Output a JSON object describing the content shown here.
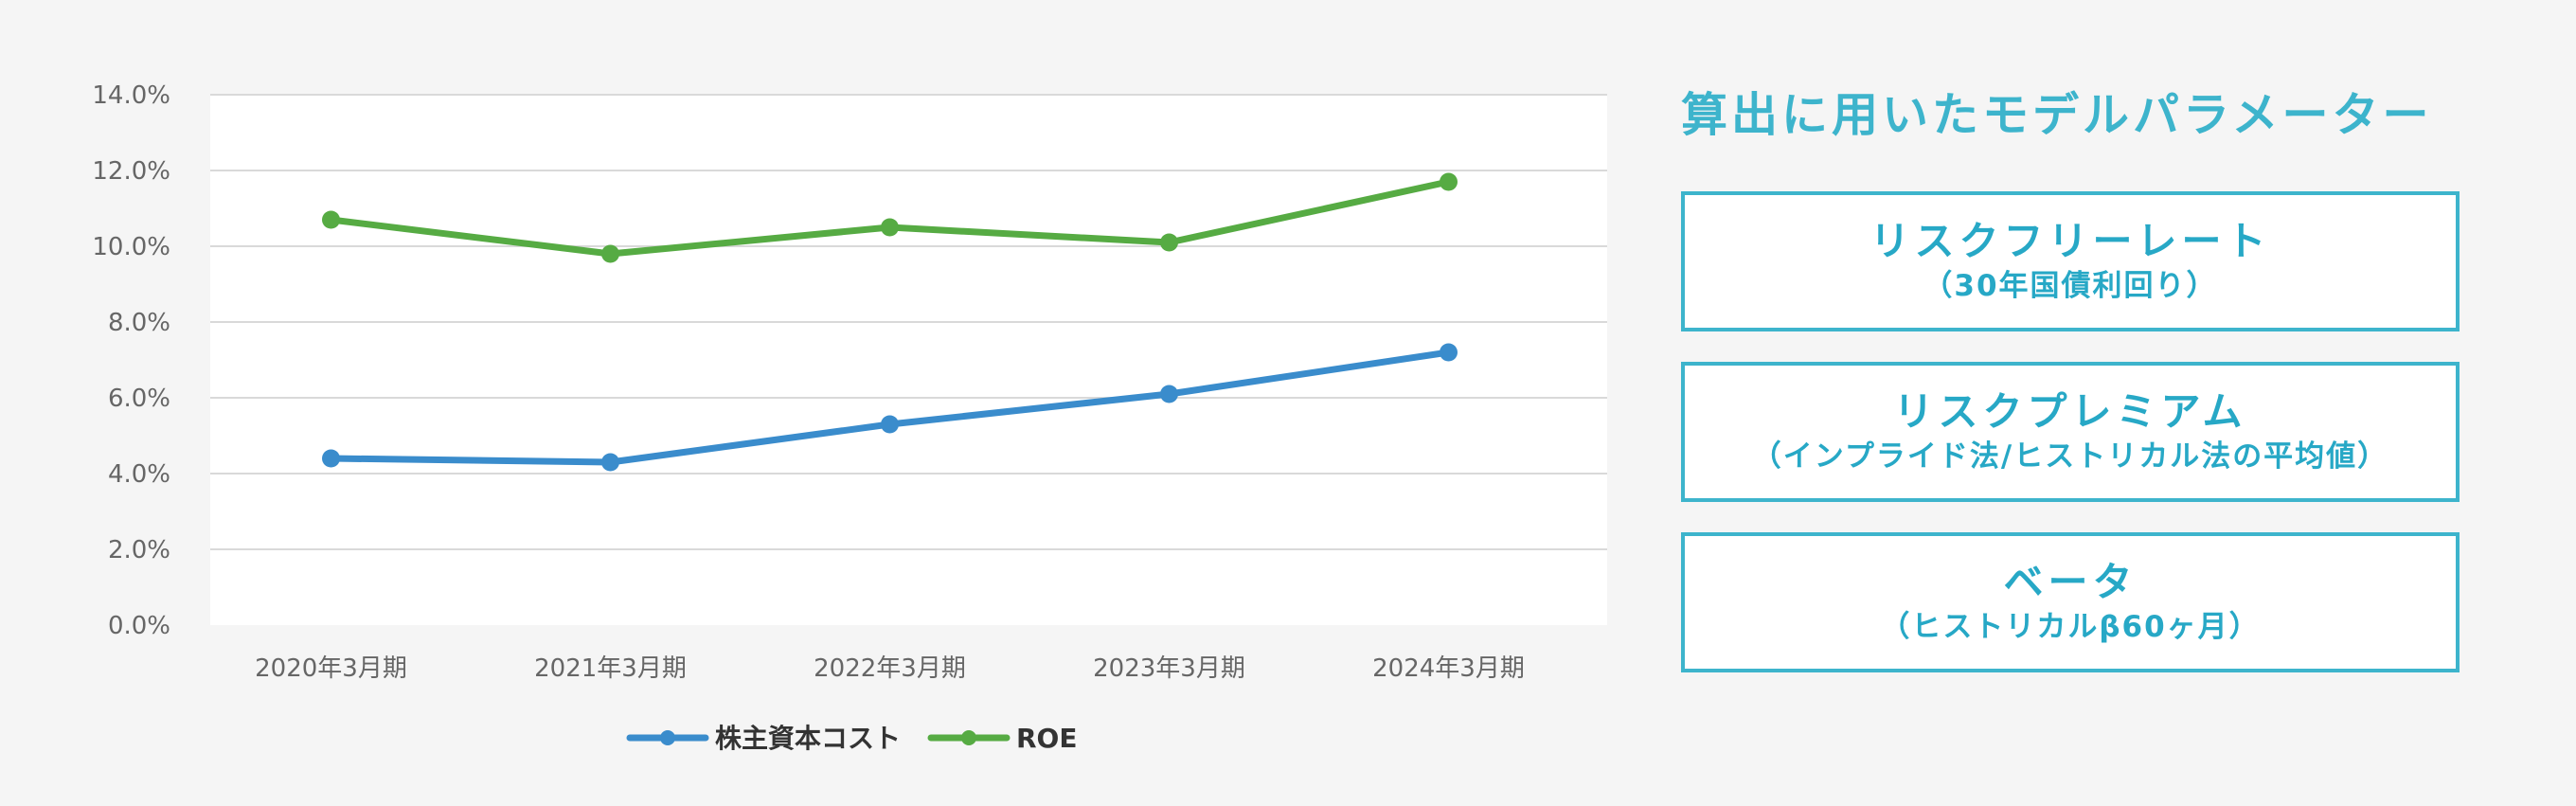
{
  "chart_data": {
    "type": "line",
    "categories": [
      "2020年3月期",
      "2021年3月期",
      "2022年3月期",
      "2023年3月期",
      "2024年3月期"
    ],
    "series": [
      {
        "name": "株主資本コスト",
        "values": [
          4.4,
          4.3,
          5.3,
          6.1,
          7.2
        ],
        "color": "#3a8ccc"
      },
      {
        "name": "ROE",
        "values": [
          10.7,
          9.8,
          10.5,
          10.1,
          11.7
        ],
        "color": "#56ab43"
      }
    ],
    "y_ticks": [
      "0.0%",
      "2.0%",
      "4.0%",
      "6.0%",
      "8.0%",
      "10.0%",
      "12.0%",
      "14.0%"
    ],
    "ylim": [
      0,
      14
    ],
    "grid": true,
    "legend_position": "bottom",
    "ylabel_unit": "%"
  },
  "panel": {
    "title": "算出に用いたモデルパラメーター",
    "accent_color": "#3db4cc",
    "params": [
      {
        "name": "リスクフリーレート",
        "sub": "（30年国債利回り）"
      },
      {
        "name": "リスクプレミアム",
        "sub": "（インプライド法/ヒストリカル法の平均値）"
      },
      {
        "name": "ベータ",
        "sub": "（ヒストリカルβ60ヶ月）"
      }
    ]
  }
}
